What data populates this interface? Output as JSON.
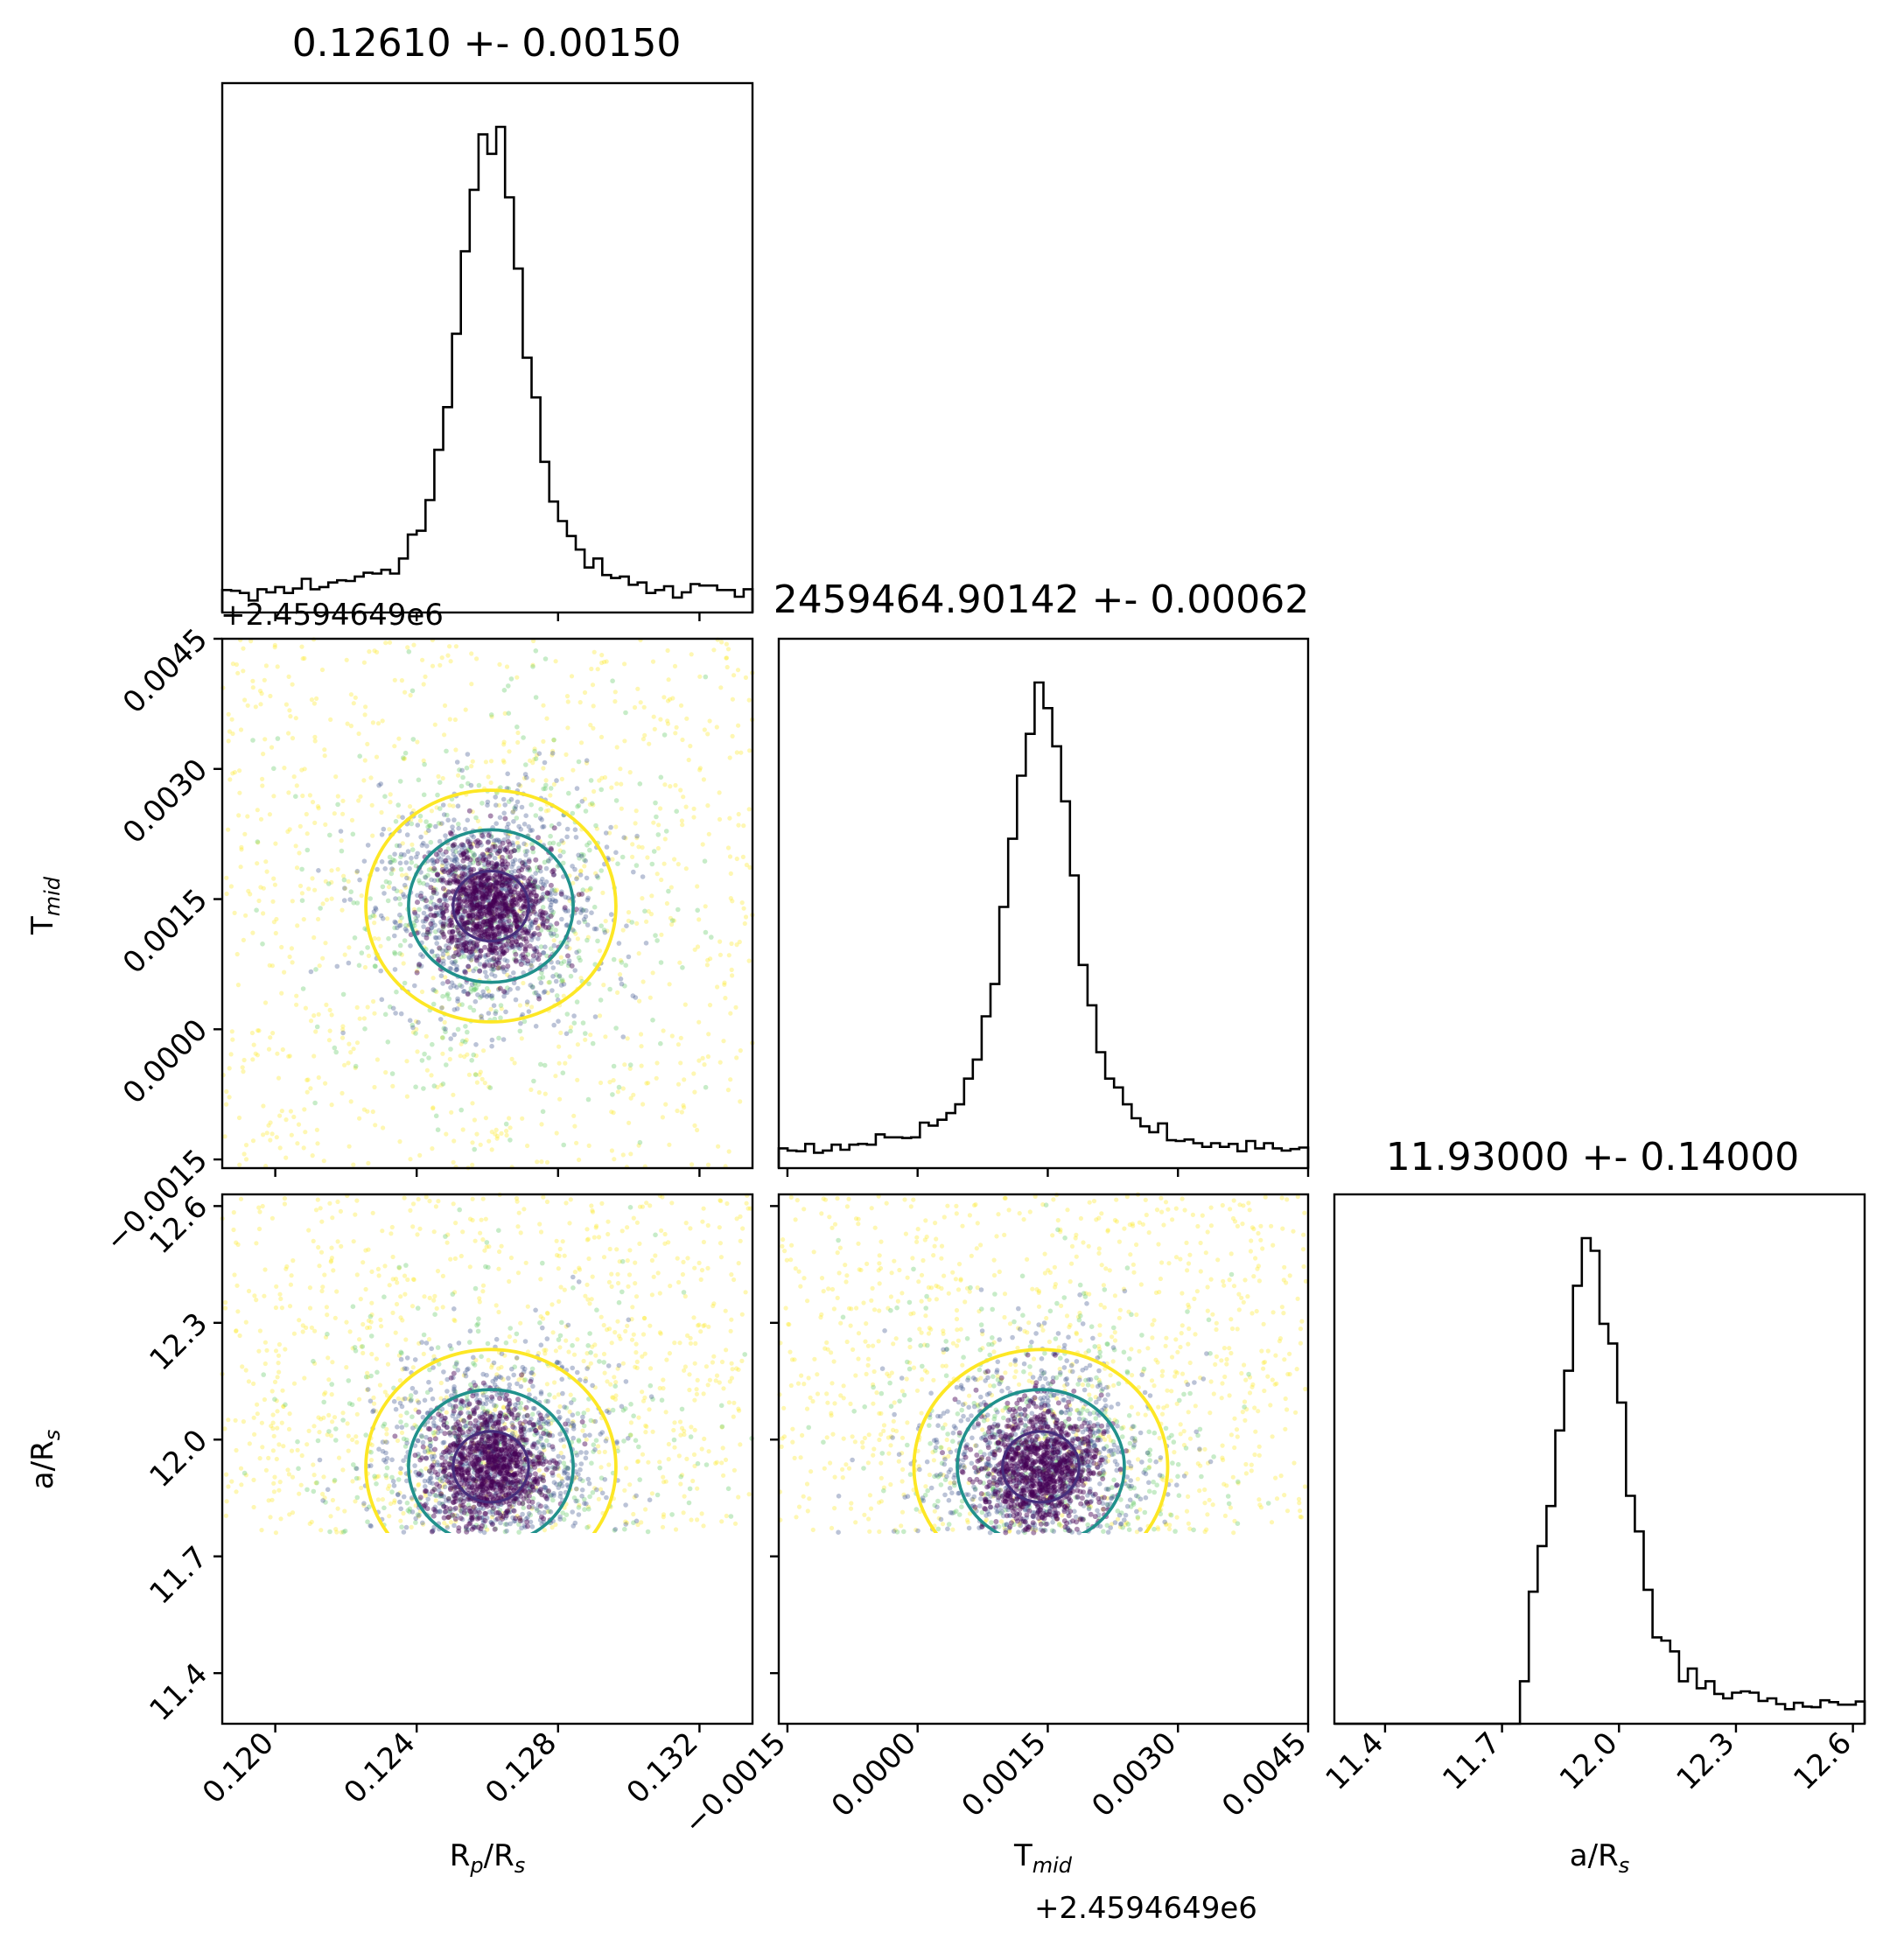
{
  "chart_data": {
    "type": "corner",
    "parameters": [
      {
        "key": "rprs",
        "label_main": "R",
        "label_sub1": "p",
        "label_mid": "/R",
        "label_sub2": "s",
        "range": [
          0.1185,
          0.1335
        ],
        "ticks": [
          "0.120",
          "0.124",
          "0.128",
          "0.132"
        ],
        "tick_values": [
          0.12,
          0.124,
          0.128,
          0.132
        ],
        "median": 0.1261,
        "sigma": 0.0015,
        "title": "0.12610 +- 0.00150"
      },
      {
        "key": "tmid",
        "label_main": "T",
        "label_sub1": "mid",
        "label_mid": "",
        "label_sub2": "",
        "range": [
          -0.0016,
          0.0045
        ],
        "ticks": [
          "−0.0015",
          "0.0000",
          "0.0015",
          "0.0030",
          "0.0045"
        ],
        "tick_values": [
          -0.0015,
          0.0,
          0.0015,
          0.003,
          0.0045
        ],
        "offset": "+2.4594649e6",
        "median": 0.00142,
        "sigma": 0.00062,
        "title": "2459464.90142 +- 0.00062"
      },
      {
        "key": "ars",
        "label_main": "a/R",
        "label_sub1": "",
        "label_mid": "",
        "label_sub2": "s",
        "range": [
          11.27,
          12.63
        ],
        "ticks": [
          "11.4",
          "11.7",
          "12.0",
          "12.3",
          "12.6"
        ],
        "tick_values": [
          11.4,
          11.7,
          12.0,
          12.3,
          12.6
        ],
        "median": 11.93,
        "sigma": 0.14,
        "lower_cut": 11.76,
        "title": "11.93000 +- 0.14000"
      }
    ],
    "contour_levels": [
      "inner",
      "middle",
      "outer"
    ],
    "colors": {
      "contour_inner": "#472e7c",
      "contour_middle": "#21918c",
      "contour_outer": "#fde725",
      "points_core": "#440154",
      "points_mid": "#3b528b",
      "points_green": "#5ec962",
      "points_outer": "#fde725",
      "hist": "#000000"
    }
  }
}
